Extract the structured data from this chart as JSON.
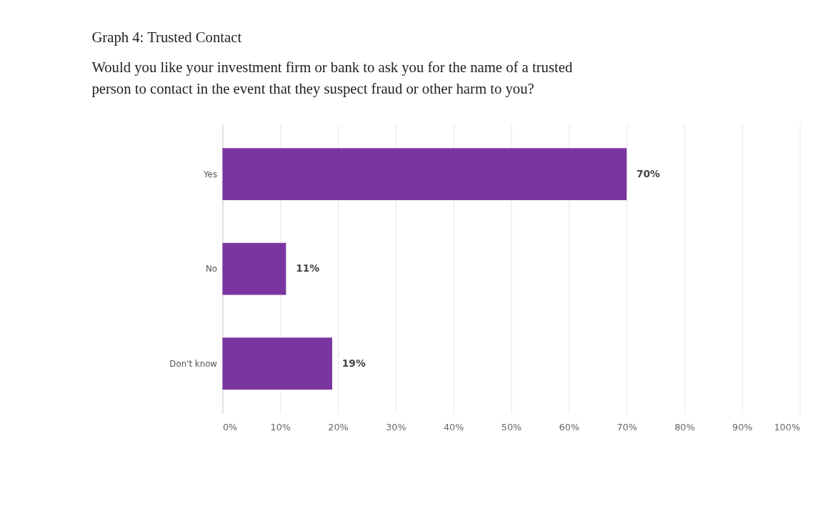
{
  "chart_data": {
    "type": "bar",
    "orientation": "horizontal",
    "title": "Graph 4: Trusted Contact",
    "subtitle": "Would you like your investment firm or bank to ask you for the name of a trusted person to contact in the event that they suspect fraud or other harm to you?",
    "categories": [
      "Yes",
      "No",
      "Don't know"
    ],
    "series": [
      {
        "color": "#7b35a0",
        "values": [
          70,
          11,
          19
        ],
        "value_labels": [
          "70%",
          "11%",
          "19%"
        ]
      }
    ],
    "xlim": [
      0,
      100
    ],
    "xticks": [
      {
        "value": 0,
        "label": "0%"
      },
      {
        "value": 10,
        "label": "10%"
      },
      {
        "value": 20,
        "label": "20%"
      },
      {
        "value": 30,
        "label": "30%"
      },
      {
        "value": 40,
        "label": "40%"
      },
      {
        "value": 50,
        "label": "50%"
      },
      {
        "value": 60,
        "label": "60%"
      },
      {
        "value": 70,
        "label": "70%"
      },
      {
        "value": 80,
        "label": "80%"
      },
      {
        "value": 90,
        "label": "90%"
      },
      {
        "value": 100,
        "label": "100%"
      }
    ],
    "grid": "x",
    "legend": false
  }
}
